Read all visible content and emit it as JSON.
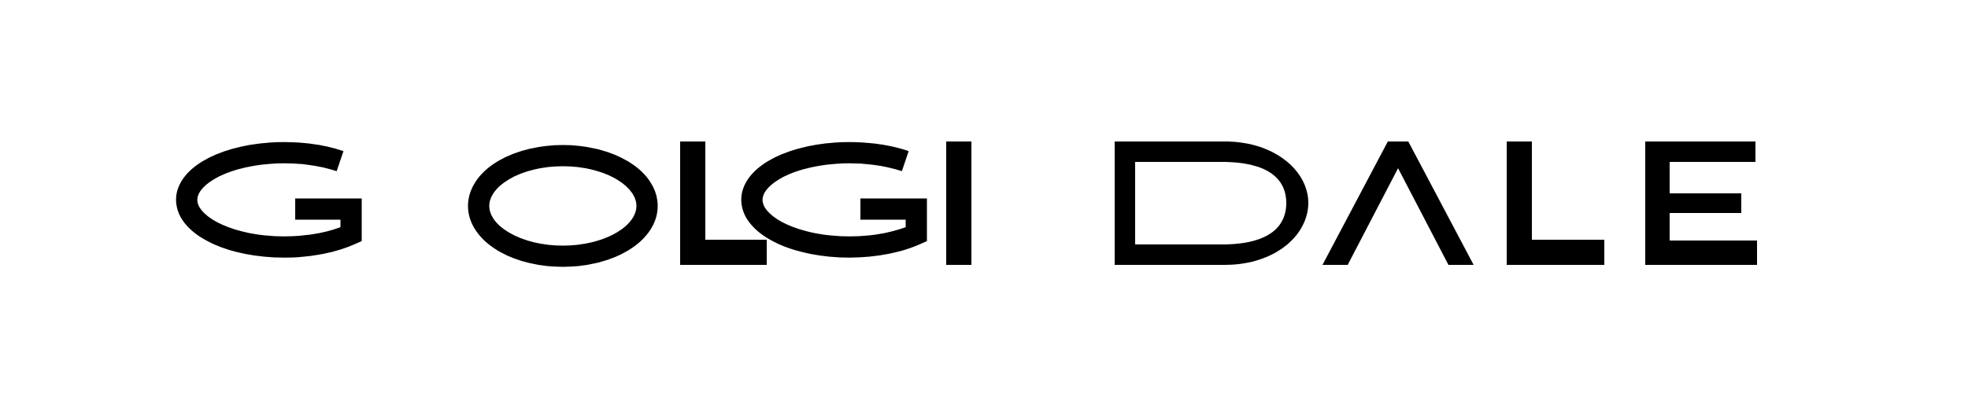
{
  "logo": {
    "word_left": "GOLGI",
    "word_right": "DALE",
    "text_color": "#000000",
    "background_color": "#ffffff"
  }
}
